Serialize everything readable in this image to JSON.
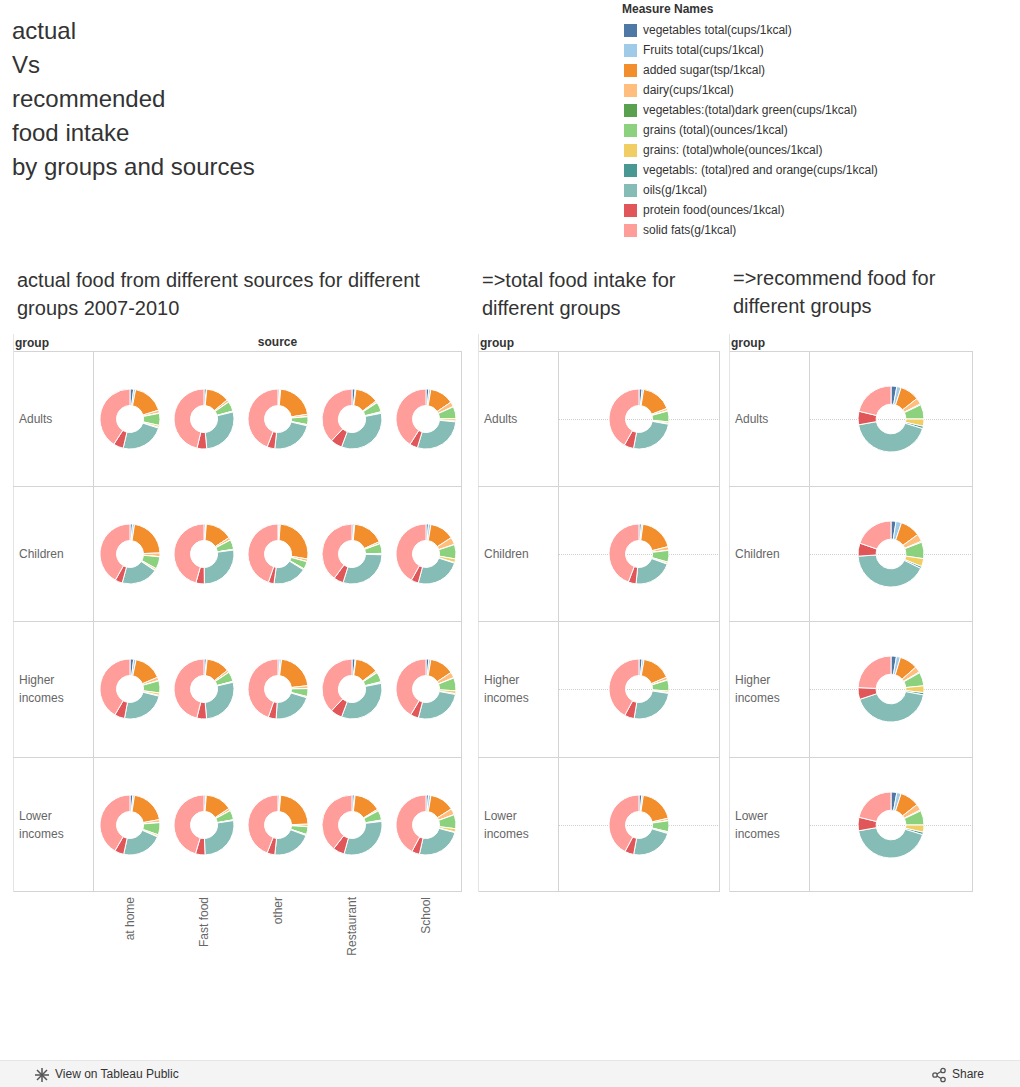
{
  "title_lines": [
    "actual",
    "Vs",
    "recommended",
    "food intake",
    "by groups and sources"
  ],
  "legend_title": "Measure Names",
  "measures": [
    {
      "name": "vegetables total(cups/1kcal)",
      "color": "#4e79a7"
    },
    {
      "name": "Fruits total(cups/1kcal)",
      "color": "#a0cbe8"
    },
    {
      "name": "added sugar(tsp/1kcal)",
      "color": "#f28e2b"
    },
    {
      "name": "dairy(cups/1kcal)",
      "color": "#ffbe7d"
    },
    {
      "name": "vegetables:(total)dark green(cups/1kcal)",
      "color": "#59a14f"
    },
    {
      "name": "grains (total)(ounces/1kcal)",
      "color": "#8cd17d"
    },
    {
      "name": "grains: (total)whole(ounces/1kcal)",
      "color": "#f1ce63"
    },
    {
      "name": "vegetabls: (total)red and orange(cups/1kcal)",
      "color": "#499894"
    },
    {
      "name": "oils(g/1kcal)",
      "color": "#86bcb6"
    },
    {
      "name": "protein food(ounces/1kcal)",
      "color": "#e15759"
    },
    {
      "name": "solid fats(g/1kcal)",
      "color": "#ff9d9a"
    }
  ],
  "chart_data": [
    {
      "type": "pie",
      "title": "actual food from different sources for different groups 2007-2010",
      "row_header": "group",
      "column_header": "source",
      "rows": [
        "Adults",
        "Children",
        "Higher incomes",
        "Lower incomes"
      ],
      "columns": [
        "at home",
        "Fast food",
        "other",
        "Restaurant",
        "School"
      ],
      "values": [
        [
          [
            0.9,
            0.5,
            8,
            0.7,
            0.1,
            3,
            0.5,
            0.2,
            11,
            2.5,
            19
          ],
          [
            0.6,
            0.1,
            6,
            0.6,
            0.05,
            2.5,
            0.1,
            0.15,
            13,
            2.5,
            22
          ],
          [
            0.4,
            0.3,
            10,
            0.6,
            0.05,
            2,
            0.2,
            0.1,
            11,
            2,
            21
          ],
          [
            0.8,
            0.2,
            6,
            0.4,
            0.1,
            2.5,
            0.2,
            0.2,
            16,
            3,
            18
          ],
          [
            0.7,
            0.5,
            6,
            1.2,
            0.1,
            3,
            0.6,
            0.2,
            13,
            2,
            19
          ]
        ],
        [
          [
            0.6,
            0.5,
            10,
            0.9,
            0.05,
            3,
            0.4,
            0.15,
            9,
            1.8,
            19
          ],
          [
            0.4,
            0.2,
            7,
            0.7,
            0.03,
            2.5,
            0.1,
            0.1,
            13,
            2.2,
            22
          ],
          [
            0.3,
            0.3,
            13,
            0.7,
            0.03,
            2,
            0.2,
            0.1,
            9,
            1.5,
            22
          ],
          [
            0.5,
            0.2,
            8,
            0.5,
            0.05,
            2.5,
            0.2,
            0.15,
            14,
            2.5,
            19
          ],
          [
            0.6,
            0.6,
            6,
            1.8,
            0.05,
            3.5,
            0.9,
            0.15,
            11,
            1.8,
            19
          ]
        ],
        [
          [
            0.9,
            0.6,
            7,
            0.8,
            0.1,
            3,
            0.6,
            0.2,
            11,
            2.5,
            19
          ],
          [
            0.6,
            0.2,
            6,
            0.6,
            0.05,
            2.5,
            0.1,
            0.15,
            13,
            2.5,
            22
          ],
          [
            0.5,
            0.4,
            10,
            0.7,
            0.05,
            2,
            0.2,
            0.1,
            10,
            2,
            21
          ],
          [
            0.8,
            0.2,
            6,
            0.4,
            0.1,
            2.5,
            0.2,
            0.2,
            16,
            3,
            18
          ],
          [
            0.7,
            0.5,
            6,
            1.4,
            0.1,
            3.2,
            0.7,
            0.2,
            12,
            2,
            19
          ]
        ],
        [
          [
            0.7,
            0.4,
            9,
            0.7,
            0.05,
            3,
            0.4,
            0.15,
            10,
            2.3,
            19
          ],
          [
            0.5,
            0.1,
            7,
            0.6,
            0.05,
            2.5,
            0.1,
            0.12,
            13,
            2.5,
            22
          ],
          [
            0.4,
            0.3,
            11,
            0.6,
            0.05,
            2,
            0.2,
            0.1,
            10,
            2,
            21
          ],
          [
            0.6,
            0.2,
            7,
            0.4,
            0.05,
            2.5,
            0.2,
            0.15,
            15,
            3,
            19
          ],
          [
            0.6,
            0.6,
            6,
            1.5,
            0.05,
            3.4,
            0.8,
            0.15,
            11,
            1.9,
            19
          ]
        ]
      ]
    },
    {
      "type": "pie",
      "title": "=>total food intake for different groups",
      "row_header": "group",
      "rows": [
        "Adults",
        "Children",
        "Higher incomes",
        "Lower incomes"
      ],
      "values": [
        [
          0.8,
          0.4,
          8,
          0.6,
          0.1,
          2.8,
          0.4,
          0.2,
          12,
          2.5,
          20
        ],
        [
          0.6,
          0.4,
          9,
          0.9,
          0.05,
          3,
          0.4,
          0.15,
          10,
          2,
          21
        ],
        [
          0.8,
          0.5,
          7.5,
          0.7,
          0.1,
          2.8,
          0.4,
          0.2,
          12,
          2.5,
          20
        ],
        [
          0.7,
          0.4,
          9,
          0.6,
          0.05,
          2.8,
          0.3,
          0.15,
          11,
          2.3,
          20
        ]
      ]
    },
    {
      "type": "pie",
      "title": "=>recommend food for different groups",
      "row_header": "group",
      "rows": [
        "Adults",
        "Children",
        "Higher incomes",
        "Lower incomes"
      ],
      "values": [
        [
          1.2,
          0.9,
          4,
          1.3,
          0.2,
          3,
          1.5,
          0.5,
          18,
          2.8,
          9
        ],
        [
          1.0,
          1.1,
          4,
          1.5,
          0.2,
          3.3,
          1.6,
          0.4,
          17,
          2.6,
          8
        ],
        [
          1.2,
          0.9,
          4,
          1.3,
          0.2,
          3,
          1.5,
          0.5,
          19,
          2.6,
          11
        ],
        [
          1.2,
          0.9,
          4,
          1.3,
          0.2,
          3,
          1.5,
          0.5,
          18,
          2.8,
          9
        ]
      ]
    }
  ],
  "footer": {
    "link": "View on Tableau Public",
    "share": "Share"
  }
}
